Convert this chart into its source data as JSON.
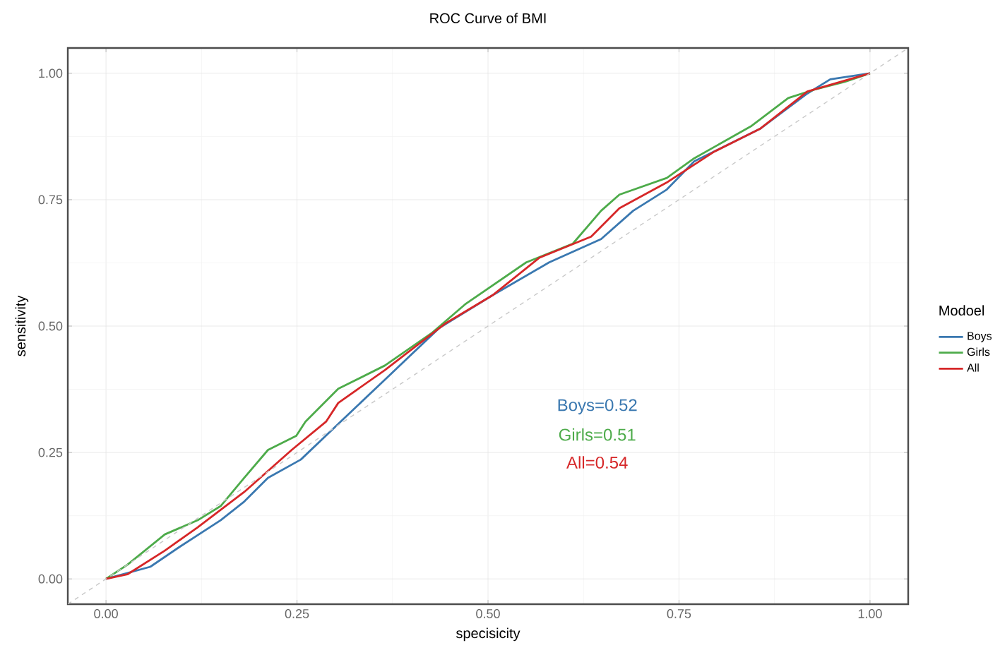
{
  "chart_data": {
    "type": "line",
    "title": "ROC Curve of BMI",
    "xlabel": "specisicity",
    "ylabel": "sensitivity",
    "legend_title": "Modoel",
    "series": [
      {
        "name": "Boys",
        "color": "#3a78b0",
        "x": [
          0,
          0.058,
          0.095,
          0.15,
          0.181,
          0.212,
          0.255,
          0.307,
          0.365,
          0.436,
          0.506,
          0.58,
          0.648,
          0.69,
          0.734,
          0.77,
          0.856,
          0.918,
          0.948,
          1
        ],
        "values": [
          0,
          0.024,
          0.062,
          0.116,
          0.153,
          0.2,
          0.236,
          0.311,
          0.394,
          0.496,
          0.561,
          0.626,
          0.672,
          0.728,
          0.77,
          0.826,
          0.89,
          0.96,
          0.988,
          1
        ]
      },
      {
        "name": "Girls",
        "color": "#4dab4a",
        "x": [
          0,
          0.028,
          0.077,
          0.12,
          0.15,
          0.181,
          0.212,
          0.249,
          0.261,
          0.304,
          0.365,
          0.427,
          0.47,
          0.55,
          0.611,
          0.648,
          0.672,
          0.734,
          0.77,
          0.844,
          0.893,
          0.93,
          0.967,
          1
        ],
        "values": [
          0,
          0.028,
          0.088,
          0.116,
          0.144,
          0.2,
          0.255,
          0.283,
          0.311,
          0.376,
          0.422,
          0.487,
          0.543,
          0.626,
          0.663,
          0.728,
          0.76,
          0.793,
          0.832,
          0.895,
          0.951,
          0.969,
          0.983,
          1
        ]
      },
      {
        "name": "All",
        "color": "#d62728",
        "x": [
          0,
          0.028,
          0.077,
          0.12,
          0.181,
          0.243,
          0.288,
          0.304,
          0.365,
          0.445,
          0.506,
          0.567,
          0.635,
          0.672,
          0.734,
          0.795,
          0.856,
          0.918,
          1
        ],
        "values": [
          0,
          0.009,
          0.056,
          0.102,
          0.172,
          0.255,
          0.311,
          0.348,
          0.413,
          0.506,
          0.561,
          0.635,
          0.677,
          0.733,
          0.784,
          0.844,
          0.89,
          0.964,
          1
        ]
      },
      {
        "color": "#c8c8c8",
        "line_style": "dashed",
        "x": [
          -0.05,
          1.05
        ],
        "values": [
          -0.05,
          1.05
        ]
      }
    ],
    "annotations": [
      "Boys=0.52",
      "Girls=0.51",
      "All=0.54"
    ],
    "xlim": [
      -0.05,
      1.05
    ],
    "ylim": [
      -0.05,
      1.05
    ],
    "xticks": [
      {
        "value": 0,
        "label": "0.00"
      },
      {
        "value": 0.25,
        "label": "0.25"
      },
      {
        "value": 0.5,
        "label": "0.50"
      },
      {
        "value": 0.75,
        "label": "0.75"
      },
      {
        "value": 1,
        "label": "1.00"
      }
    ],
    "yticks": [
      {
        "value": 0,
        "label": "0.00"
      },
      {
        "value": 0.25,
        "label": "0.25"
      },
      {
        "value": 0.5,
        "label": "0.50"
      },
      {
        "value": 0.75,
        "label": "0.75"
      },
      {
        "value": 1,
        "label": "1.00"
      }
    ],
    "grid": true,
    "legend": "right",
    "line_style": "solid"
  }
}
